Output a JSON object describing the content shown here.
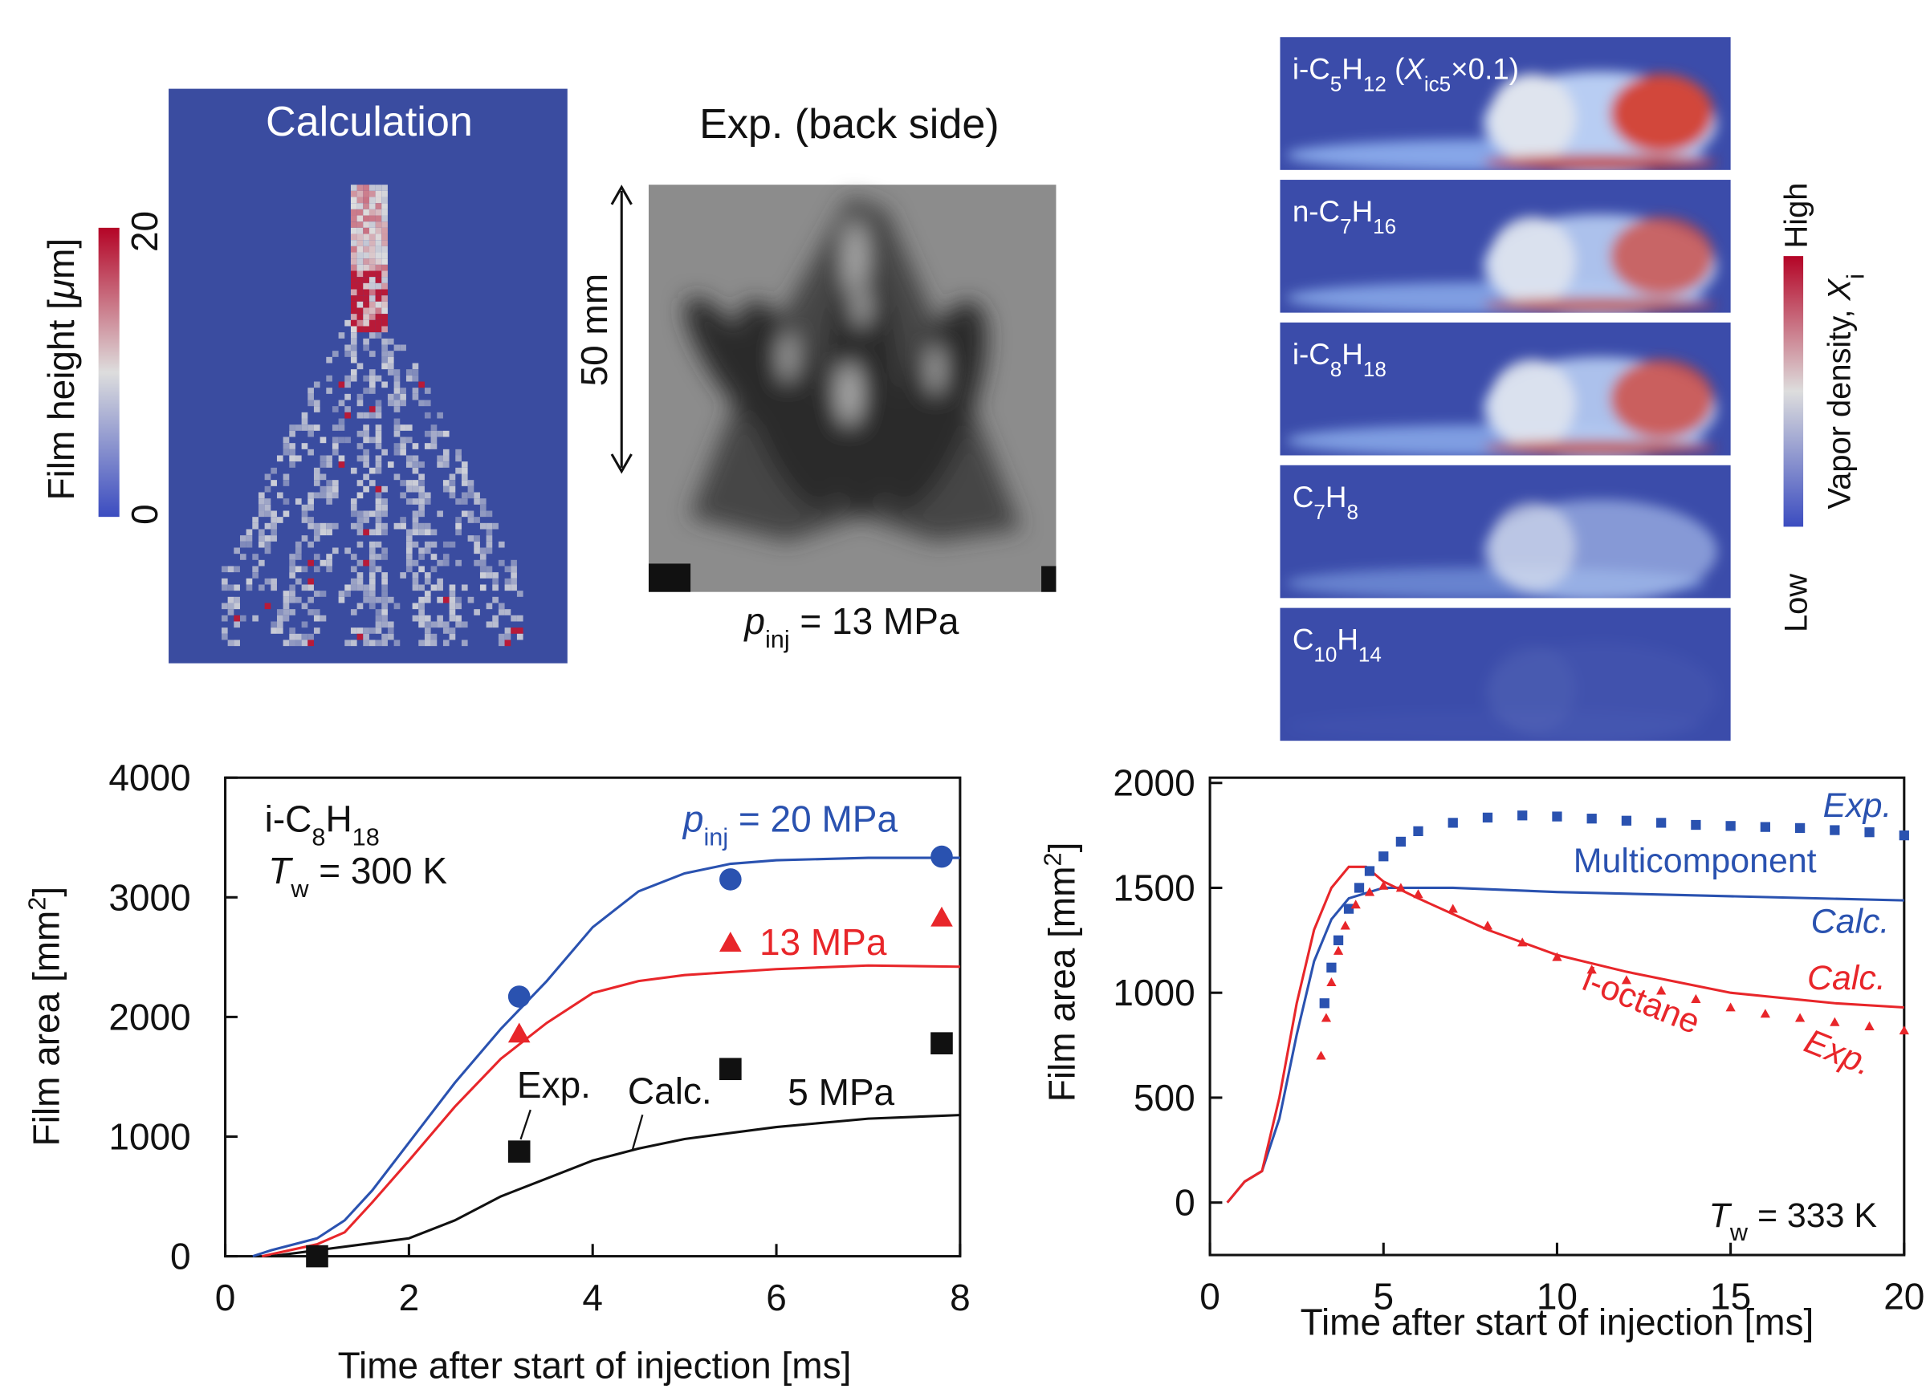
{
  "panels": {
    "calc": {
      "title": "Calculation",
      "colorbar_label": [
        "Film height [",
        "μ",
        "m]"
      ],
      "colorbar_ticks": [
        "20",
        "0"
      ]
    },
    "exp": {
      "title": "Exp. (back side)",
      "scale": "50 mm",
      "caption": [
        "p",
        "inj",
        " = 13 MPa"
      ]
    },
    "vapor": {
      "species": [
        [
          "i-C",
          "5",
          "H",
          "12",
          " (",
          "X",
          "ic5",
          "×0.1)"
        ],
        [
          "n-C",
          "7",
          "H",
          "16"
        ],
        [
          "i-C",
          "8",
          "H",
          "18"
        ],
        [
          "C",
          "7",
          "H",
          "8"
        ],
        [
          "C",
          "10",
          "H",
          "14"
        ]
      ],
      "colorbar_high": "High",
      "colorbar_low": "Low",
      "colorbar_label": [
        "Vapor density, ",
        "X",
        "i"
      ]
    }
  },
  "chart_data": [
    {
      "type": "line",
      "xlabel": "Time after start of injection [ms]",
      "ylabel": [
        "Film area [mm",
        "2",
        "]"
      ],
      "xlim": [
        0,
        8
      ],
      "ylim": [
        0,
        4000
      ],
      "xticks": [
        0,
        2,
        4,
        6,
        8
      ],
      "yticks": [
        0,
        1000,
        2000,
        3000,
        4000
      ],
      "annotations": [
        [
          "i-C",
          "8",
          "H",
          "18"
        ],
        [
          "T",
          "w",
          " = 300 K"
        ],
        [
          "p",
          "inj",
          " = 20 MPa"
        ],
        "13 MPa",
        "Exp.",
        "Calc.",
        "5 MPa"
      ],
      "series": [
        {
          "color": "#2a52b0",
          "style": "line",
          "x": [
            0.3,
            0.5,
            1,
            1.3,
            1.6,
            2,
            2.5,
            3,
            3.5,
            4,
            4.5,
            5,
            5.5,
            6,
            7,
            8
          ],
          "values": [
            0,
            50,
            150,
            300,
            550,
            950,
            1450,
            1900,
            2300,
            2750,
            3050,
            3200,
            3280,
            3310,
            3330,
            3330
          ]
        },
        {
          "color": "#e8262a",
          "style": "line",
          "x": [
            0.4,
            1,
            1.3,
            1.6,
            2,
            2.5,
            3,
            3.5,
            4,
            4.5,
            5,
            6,
            7,
            8
          ],
          "values": [
            0,
            100,
            200,
            450,
            800,
            1250,
            1650,
            1950,
            2200,
            2300,
            2350,
            2400,
            2430,
            2420
          ]
        },
        {
          "color": "#111111",
          "style": "line",
          "x": [
            0.5,
            1,
            1.5,
            2,
            2.5,
            3,
            3.5,
            4,
            4.5,
            5,
            6,
            7,
            8
          ],
          "values": [
            0,
            50,
            100,
            150,
            300,
            500,
            650,
            800,
            900,
            980,
            1080,
            1150,
            1180
          ]
        },
        {
          "color": "#2a52b0",
          "style": "circle",
          "x": [
            3.2,
            5.5,
            7.8
          ],
          "values": [
            2170,
            3150,
            3340
          ]
        },
        {
          "color": "#e8262a",
          "style": "triangle",
          "x": [
            3.2,
            5.5,
            7.8
          ],
          "values": [
            1860,
            2620,
            2830
          ]
        },
        {
          "color": "#111111",
          "style": "square",
          "x": [
            1,
            3.2,
            5.5,
            7.8
          ],
          "values": [
            0,
            875,
            1565,
            1780
          ]
        }
      ]
    },
    {
      "type": "line",
      "xlabel": "Time after start of injection [ms]",
      "ylabel": [
        "Film area [mm",
        "2",
        "]"
      ],
      "xlim": [
        0,
        20
      ],
      "ylim": [
        -250,
        2025
      ],
      "xticks": [
        0,
        5,
        10,
        15,
        20
      ],
      "yticks": [
        0,
        500,
        1000,
        1500,
        2000
      ],
      "annotations": [
        "Exp.",
        "Multicomponent",
        "Calc.",
        "Calc.",
        "i-octane",
        "Exp.",
        [
          "T",
          "w",
          " = 333 K"
        ]
      ],
      "series": [
        {
          "color": "#2a52b0",
          "style": "line",
          "x": [
            0.5,
            1,
            1.5,
            2,
            2.5,
            3,
            3.5,
            4,
            5,
            7,
            10,
            15,
            20
          ],
          "values": [
            0,
            100,
            150,
            400,
            800,
            1150,
            1350,
            1450,
            1500,
            1500,
            1480,
            1460,
            1440
          ]
        },
        {
          "color": "#e8262a",
          "style": "line",
          "x": [
            0.5,
            1,
            1.5,
            2,
            2.5,
            3,
            3.5,
            4,
            4.5,
            5,
            6,
            8,
            10,
            12,
            15,
            18,
            20
          ],
          "values": [
            0,
            100,
            150,
            500,
            950,
            1300,
            1500,
            1600,
            1600,
            1530,
            1450,
            1300,
            1180,
            1100,
            1000,
            950,
            930
          ]
        },
        {
          "color": "#2a52b0",
          "style": "square",
          "x": [
            3.3,
            3.5,
            3.7,
            4,
            4.3,
            4.6,
            5,
            5.5,
            6,
            7,
            8,
            9,
            10,
            11,
            12,
            13,
            14,
            15,
            16,
            17,
            18,
            19,
            20
          ],
          "values": [
            950,
            1120,
            1250,
            1400,
            1500,
            1580,
            1650,
            1720,
            1770,
            1810,
            1835,
            1845,
            1840,
            1830,
            1820,
            1810,
            1800,
            1795,
            1790,
            1785,
            1775,
            1765,
            1750
          ]
        },
        {
          "color": "#e8262a",
          "style": "triangle",
          "x": [
            3.2,
            3.35,
            3.5,
            3.7,
            3.9,
            4.2,
            4.6,
            5,
            5.5,
            6,
            7,
            8,
            9,
            10,
            11,
            12,
            13,
            14,
            15,
            16,
            17,
            18,
            19,
            20
          ],
          "values": [
            700,
            880,
            1050,
            1200,
            1320,
            1420,
            1480,
            1510,
            1500,
            1470,
            1400,
            1320,
            1240,
            1170,
            1110,
            1060,
            1010,
            970,
            930,
            900,
            880,
            860,
            840,
            820
          ]
        }
      ]
    }
  ]
}
